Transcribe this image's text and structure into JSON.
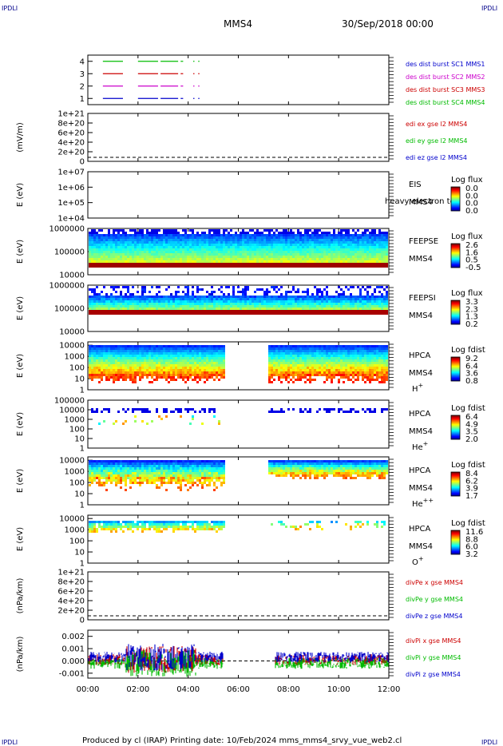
{
  "header": {
    "corner": "IPDLI",
    "title": "MMS4",
    "date": "30/Sep/2018 00:00"
  },
  "footer": "Produced by cl (IRAP)   Printing date: 10/Feb/2024   mms_mms4_srvy_vue_web2.cl",
  "time_axis": {
    "ticks": [
      "00:00",
      "02:00",
      "04:00",
      "06:00",
      "08:00",
      "10:00",
      "12:00"
    ],
    "range_hours": [
      0,
      12
    ]
  },
  "chart_data": [
    {
      "type": "line",
      "panel": "burst-coverage",
      "yticks": [
        "1",
        "2",
        "3",
        "4"
      ],
      "ylim": [
        0.5,
        4.5
      ],
      "legend": [
        {
          "label": "des dist burst SC1 MMS1",
          "color": "#0000cc"
        },
        {
          "label": "des dist burst SC2 MMS2",
          "color": "#cc00cc"
        },
        {
          "label": "des dist burst SC3 MMS3",
          "color": "#cc0000"
        },
        {
          "label": "des dist burst SC4 MMS4",
          "color": "#00bb00"
        }
      ],
      "series": [
        {
          "y": 4,
          "color": "#00bb00",
          "segments": [
            [
              0.6,
              1.4
            ],
            [
              2.0,
              2.8
            ],
            [
              2.9,
              3.6
            ],
            [
              3.7,
              3.8
            ],
            [
              4.2,
              4.25
            ],
            [
              4.4,
              4.45
            ]
          ]
        },
        {
          "y": 3,
          "color": "#cc0000",
          "segments": [
            [
              0.6,
              1.4
            ],
            [
              2.0,
              2.8
            ],
            [
              2.9,
              3.6
            ],
            [
              3.7,
              3.8
            ],
            [
              4.2,
              4.25
            ],
            [
              4.4,
              4.45
            ]
          ]
        },
        {
          "y": 2,
          "color": "#cc00cc",
          "segments": [
            [
              0.6,
              1.4
            ],
            [
              2.0,
              2.8
            ],
            [
              2.9,
              3.6
            ],
            [
              3.7,
              3.8
            ],
            [
              4.2,
              4.25
            ],
            [
              4.4,
              4.45
            ]
          ]
        },
        {
          "y": 1,
          "color": "#0000cc",
          "segments": [
            [
              0.6,
              1.4
            ],
            [
              2.0,
              2.8
            ],
            [
              2.9,
              3.6
            ],
            [
              3.7,
              3.8
            ],
            [
              4.2,
              4.25
            ],
            [
              4.4,
              4.45
            ]
          ]
        }
      ]
    },
    {
      "type": "line",
      "panel": "edi-electric-field",
      "ylabel": "(mV/m)",
      "yticks": [
        "0",
        "2e+20",
        "4e+20",
        "6e+20",
        "8e+20",
        "1e+21"
      ],
      "ylim": [
        0,
        1e+21
      ],
      "legend": [
        {
          "label": "edi ex gse l2 MMS4",
          "color": "#cc0000"
        },
        {
          "label": "edi ey gse l2 MMS4",
          "color": "#00bb00"
        },
        {
          "label": "edi ez gse l2 MMS4",
          "color": "#0000cc"
        }
      ],
      "zero_line": true
    },
    {
      "type": "heatmap",
      "panel": "eis",
      "ylabel": "E (eV)",
      "yticks": [
        "1e+04",
        "1e+05",
        "1e+06",
        "1e+07"
      ],
      "ylim_log10": [
        4,
        7
      ],
      "labels": [
        "EIS",
        "MMS4"
      ],
      "overlay_text": "heavy electron to",
      "colorbar": {
        "title": "Log flux",
        "ticks": [
          "0.0",
          "0.0",
          "0.0",
          "0.0"
        ]
      },
      "empty": true
    },
    {
      "type": "heatmap",
      "panel": "feeps-electron",
      "ylabel": "E (eV)",
      "yticks": [
        "10000",
        "100000",
        "1000000"
      ],
      "ylim_log10": [
        4,
        6
      ],
      "labels": [
        "FEEPSE",
        "MMS4"
      ],
      "colorbar": {
        "title": "Log flux",
        "ticks": [
          "2.6",
          "1.6",
          "0.5",
          "-0.5"
        ]
      },
      "segments": [
        [
          0,
          12
        ]
      ],
      "pattern": "feeps_e"
    },
    {
      "type": "heatmap",
      "panel": "feeps-ion",
      "ylabel": "E (eV)",
      "yticks": [
        "10000",
        "100000",
        "1000000"
      ],
      "ylim_log10": [
        4,
        6
      ],
      "labels": [
        "FEEPSI",
        "MMS4"
      ],
      "colorbar": {
        "title": "Log flux",
        "ticks": [
          "3.3",
          "2.3",
          "1.3",
          "0.2"
        ]
      },
      "segments": [
        [
          0,
          12
        ]
      ],
      "pattern": "feeps_i"
    },
    {
      "type": "heatmap",
      "panel": "hpca-h",
      "ylabel": "E (eV)",
      "yticks": [
        "1",
        "10",
        "100",
        "1000",
        "10000"
      ],
      "ylim_log10": [
        0,
        4.3
      ],
      "labels": [
        "HPCA",
        "MMS4",
        "H+"
      ],
      "colorbar": {
        "title": "Log fdist",
        "ticks": [
          "9.2",
          "6.4",
          "3.6",
          "0.8"
        ]
      },
      "segments": [
        [
          0,
          5.4
        ],
        [
          7.15,
          12
        ]
      ],
      "pattern": "hpca_h"
    },
    {
      "type": "heatmap",
      "panel": "hpca-he",
      "ylabel": "E (eV)",
      "yticks": [
        "1",
        "10",
        "100",
        "1000",
        "10000",
        "100000"
      ],
      "ylim_log10": [
        0,
        5
      ],
      "labels": [
        "HPCA",
        "MMS4",
        "He+"
      ],
      "colorbar": {
        "title": "Log fdist",
        "ticks": [
          "6.4",
          "4.9",
          "3.5",
          "2.0"
        ]
      },
      "segments": [
        [
          0,
          5.4
        ],
        [
          7.15,
          12
        ]
      ],
      "pattern": "hpca_he"
    },
    {
      "type": "heatmap",
      "panel": "hpca-he2",
      "ylabel": "E (eV)",
      "yticks": [
        "1",
        "10",
        "100",
        "1000",
        "10000"
      ],
      "ylim_log10": [
        0,
        4.3
      ],
      "labels": [
        "HPCA",
        "MMS4",
        "He++"
      ],
      "colorbar": {
        "title": "Log fdist",
        "ticks": [
          "8.4",
          "6.2",
          "3.9",
          "1.7"
        ]
      },
      "segments": [
        [
          0,
          5.4
        ],
        [
          7.15,
          12
        ]
      ],
      "pattern": "hpca_he2"
    },
    {
      "type": "heatmap",
      "panel": "hpca-o",
      "ylabel": "E (eV)",
      "yticks": [
        "1",
        "10",
        "100",
        "1000",
        "10000"
      ],
      "ylim_log10": [
        0,
        4.3
      ],
      "labels": [
        "HPCA",
        "MMS4",
        "O+"
      ],
      "colorbar": {
        "title": "Log fdist",
        "ticks": [
          "11.6",
          "8.8",
          "6.0",
          "3.2"
        ]
      },
      "segments": [
        [
          0,
          5.4
        ],
        [
          7.15,
          12
        ]
      ],
      "pattern": "hpca_o"
    },
    {
      "type": "line",
      "panel": "div-pe",
      "ylabel": "(nPa/km)",
      "yticks": [
        "0",
        "2e+20",
        "4e+20",
        "6e+20",
        "8e+20",
        "1e+21"
      ],
      "ylim": [
        0,
        1e+21
      ],
      "legend": [
        {
          "label": "divPe x gse MMS4",
          "color": "#cc0000"
        },
        {
          "label": "divPe y gse MMS4",
          "color": "#00bb00"
        },
        {
          "label": "divPe z gse MMS4",
          "color": "#0000cc"
        }
      ],
      "zero_line": true
    },
    {
      "type": "line",
      "panel": "div-pi",
      "ylabel": "(nPa/km)",
      "yticks": [
        "-0.001",
        "0.000",
        "0.001",
        "0.002"
      ],
      "ylim": [
        -0.0014,
        0.0025
      ],
      "legend": [
        {
          "label": "divPi x gse MMS4",
          "color": "#cc0000"
        },
        {
          "label": "divPi y gse MMS4",
          "color": "#00bb00"
        },
        {
          "label": "divPi z gse MMS4",
          "color": "#0000cc"
        }
      ],
      "segments": [
        [
          0,
          5.4
        ],
        [
          7.45,
          12
        ]
      ],
      "zero_line": true
    }
  ]
}
